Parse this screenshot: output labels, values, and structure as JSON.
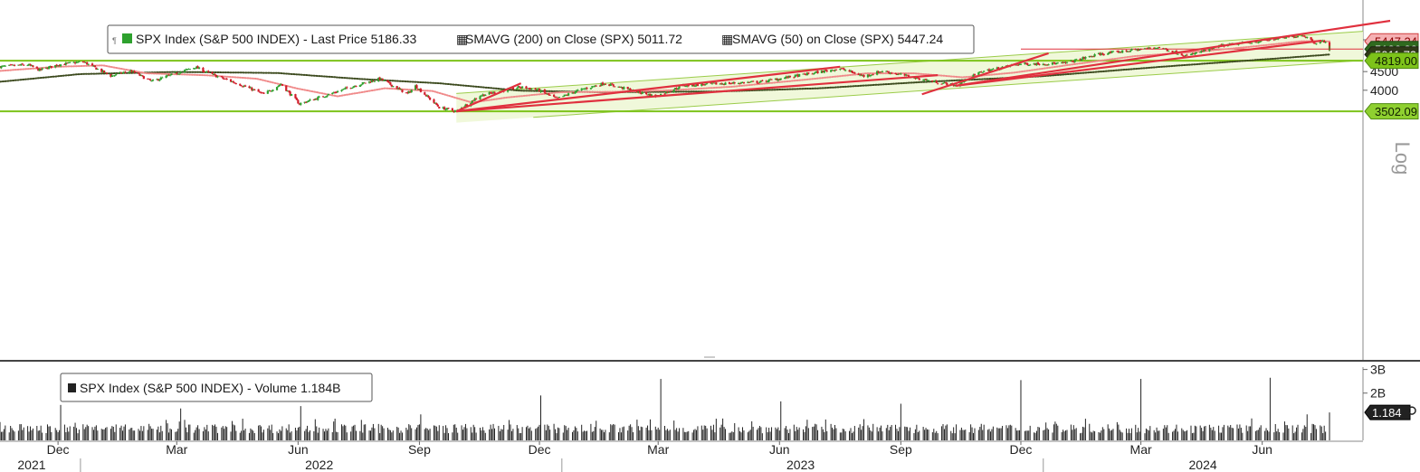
{
  "price_legend": {
    "price": "SPX Index (S&P 500 INDEX) - Last Price 5186.33",
    "sma200": "SMAVG (200)  on Close (SPX) 5011.72",
    "sma50": "SMAVG (50)  on Close (SPX) 5447.24"
  },
  "volume_legend": "SPX Index (S&P 500 INDEX) - Volume 1.184B",
  "scale_label": "Log",
  "colors": {
    "up": "#2ea12e",
    "down": "#d21d2b",
    "sma50": "#f08a8a",
    "sma200": "#3c4a1e",
    "channel_fill": "#eef7d6",
    "channel_line": "#9bcc4a",
    "level_line": "#7dc31a",
    "trendline": "#e0303e",
    "volume": "#222222"
  },
  "chart_data": [
    {
      "type": "candlestick",
      "scale": "log",
      "ylim": [
        3502.09,
        5600
      ],
      "y_ticks": [
        "5500",
        "4500",
        "4000"
      ],
      "x_month_labels": [
        "Dec",
        "Mar",
        "Jun",
        "Sep",
        "Dec",
        "Mar",
        "Jun",
        "Sep",
        "Dec",
        "Mar",
        "Jun"
      ],
      "x_year_labels": [
        "2021",
        "2022",
        "2023",
        "2024"
      ],
      "price_path": [
        [
          "2021-11-01",
          4640
        ],
        [
          "2021-11-22",
          4700
        ],
        [
          "2021-12-01",
          4540
        ],
        [
          "2021-12-15",
          4700
        ],
        [
          "2022-01-03",
          4790
        ],
        [
          "2022-01-24",
          4380
        ],
        [
          "2022-02-08",
          4520
        ],
        [
          "2022-02-24",
          4230
        ],
        [
          "2022-03-29",
          4630
        ],
        [
          "2022-04-12",
          4400
        ],
        [
          "2022-05-02",
          4150
        ],
        [
          "2022-05-20",
          3900
        ],
        [
          "2022-06-02",
          4160
        ],
        [
          "2022-06-16",
          3670
        ],
        [
          "2022-07-01",
          3820
        ],
        [
          "2022-07-29",
          4130
        ],
        [
          "2022-08-16",
          4300
        ],
        [
          "2022-09-06",
          3910
        ],
        [
          "2022-09-12",
          4110
        ],
        [
          "2022-09-30",
          3590
        ],
        [
          "2022-10-13",
          3500
        ],
        [
          "2022-10-31",
          3870
        ],
        [
          "2022-11-30",
          4080
        ],
        [
          "2022-12-13",
          4020
        ],
        [
          "2022-12-28",
          3790
        ],
        [
          "2023-01-13",
          3990
        ],
        [
          "2023-02-02",
          4180
        ],
        [
          "2023-03-13",
          3850
        ],
        [
          "2023-04-03",
          4120
        ],
        [
          "2023-05-01",
          4170
        ],
        [
          "2023-06-01",
          4220
        ],
        [
          "2023-07-31",
          4590
        ],
        [
          "2023-08-18",
          4370
        ],
        [
          "2023-09-01",
          4520
        ],
        [
          "2023-10-05",
          4260
        ],
        [
          "2023-10-27",
          4120
        ],
        [
          "2023-11-15",
          4500
        ],
        [
          "2023-12-14",
          4720
        ],
        [
          "2024-01-17",
          4740
        ],
        [
          "2024-02-12",
          5020
        ],
        [
          "2024-03-28",
          5250
        ],
        [
          "2024-04-19",
          4970
        ],
        [
          "2024-05-15",
          5300
        ],
        [
          "2024-06-18",
          5480
        ],
        [
          "2024-07-16",
          5667
        ],
        [
          "2024-07-25",
          5400
        ],
        [
          "2024-08-01",
          5450
        ],
        [
          "2024-08-05",
          5186.33
        ]
      ],
      "sma50_path": [
        [
          "2021-11-01",
          4520
        ],
        [
          "2021-12-15",
          4640
        ],
        [
          "2022-01-18",
          4680
        ],
        [
          "2022-02-20",
          4450
        ],
        [
          "2022-04-05",
          4400
        ],
        [
          "2022-05-15",
          4300
        ],
        [
          "2022-06-15",
          4040
        ],
        [
          "2022-07-15",
          3850
        ],
        [
          "2022-08-20",
          4050
        ],
        [
          "2022-09-25",
          3980
        ],
        [
          "2022-10-25",
          3700
        ],
        [
          "2022-11-20",
          3820
        ],
        [
          "2022-12-31",
          3950
        ],
        [
          "2023-02-10",
          3960
        ],
        [
          "2023-03-25",
          4000
        ],
        [
          "2023-05-10",
          4090
        ],
        [
          "2023-06-30",
          4260
        ],
        [
          "2023-08-20",
          4450
        ],
        [
          "2023-09-25",
          4450
        ],
        [
          "2023-11-01",
          4340
        ],
        [
          "2023-12-10",
          4470
        ],
        [
          "2024-01-20",
          4690
        ],
        [
          "2024-03-10",
          4960
        ],
        [
          "2024-04-30",
          5110
        ],
        [
          "2024-06-10",
          5280
        ],
        [
          "2024-07-15",
          5450
        ],
        [
          "2024-08-05",
          5447.24
        ]
      ],
      "sma200_path": [
        [
          "2021-11-01",
          4220
        ],
        [
          "2022-01-01",
          4430
        ],
        [
          "2022-03-15",
          4490
        ],
        [
          "2022-05-30",
          4460
        ],
        [
          "2022-07-30",
          4300
        ],
        [
          "2022-09-30",
          4180
        ],
        [
          "2022-11-30",
          3990
        ],
        [
          "2023-02-01",
          3950
        ],
        [
          "2023-05-01",
          3970
        ],
        [
          "2023-07-15",
          4050
        ],
        [
          "2023-09-30",
          4210
        ],
        [
          "2023-12-31",
          4370
        ],
        [
          "2024-03-31",
          4640
        ],
        [
          "2024-06-30",
          4900
        ],
        [
          "2024-08-05",
          5011.72
        ]
      ],
      "price_tags": [
        {
          "value": 5447.24,
          "label": "5447.24",
          "bg": "#f5b0b3",
          "fg": "#8a0000",
          "border": "#d04040"
        },
        {
          "value": 5186.33,
          "label": "5186.33",
          "bg": "#2f6a1f",
          "fg": "#ffffff",
          "border": "#1f4a14"
        },
        {
          "value": 5011.72,
          "label": "5011.72",
          "bg": "#2f3a18",
          "fg": "#ffffff",
          "border": "#1a2210"
        },
        {
          "value": 4819.0,
          "label": "4819.00",
          "bg": "#7dc31a",
          "fg": "#102000",
          "border": "#4f8a10"
        },
        {
          "value": 3502.09,
          "label": "3502.09",
          "bg": "#8fd030",
          "fg": "#102000",
          "border": "#4f8a10"
        }
      ],
      "horizontal_levels": [
        4819.0,
        3502.09
      ],
      "resistance_level": 5186.33,
      "channel": {
        "lower_start": [
          "2022-10-13",
          3260
        ],
        "lower_end": [
          "2024-08-05",
          4760
        ],
        "upper_start": [
          "2022-10-13",
          3920
        ],
        "upper_end": [
          "2024-08-05",
          5720
        ]
      },
      "trendlines": [
        [
          [
            "2022-10-13",
            3502
          ],
          [
            "2022-12-01",
            4180
          ]
        ],
        [
          [
            "2022-10-13",
            3502
          ],
          [
            "2023-07-31",
            4640
          ]
        ],
        [
          [
            "2022-10-13",
            3502
          ],
          [
            "2023-10-13",
            4400
          ]
        ],
        [
          [
            "2023-10-01",
            3900
          ],
          [
            "2024-01-05",
            5050
          ]
        ],
        [
          [
            "2023-10-27",
            4117
          ],
          [
            "2024-09-20",
            6200
          ]
        ],
        [
          [
            "2023-10-27",
            4117
          ],
          [
            "2024-07-30",
            5470
          ]
        ]
      ]
    },
    {
      "type": "bar",
      "series": "volume",
      "y_ticks": [
        "3B",
        "2B"
      ],
      "last_value_label": "1.184",
      "last_value": 1.184,
      "unit": "B",
      "typical_range": [
        0.3,
        0.7
      ],
      "spikes": [
        [
          "2021-12-17",
          1.5
        ],
        [
          "2022-03-18",
          1.35
        ],
        [
          "2022-06-17",
          1.45
        ],
        [
          "2022-09-16",
          1.1
        ],
        [
          "2022-12-16",
          1.9
        ],
        [
          "2023-03-17",
          2.6
        ],
        [
          "2023-06-16",
          1.65
        ],
        [
          "2023-09-15",
          1.55
        ],
        [
          "2023-12-15",
          2.55
        ],
        [
          "2024-03-15",
          2.6
        ],
        [
          "2024-06-21",
          2.65
        ],
        [
          "2024-07-19",
          1.1
        ],
        [
          "2024-08-05",
          1.184
        ]
      ]
    }
  ]
}
